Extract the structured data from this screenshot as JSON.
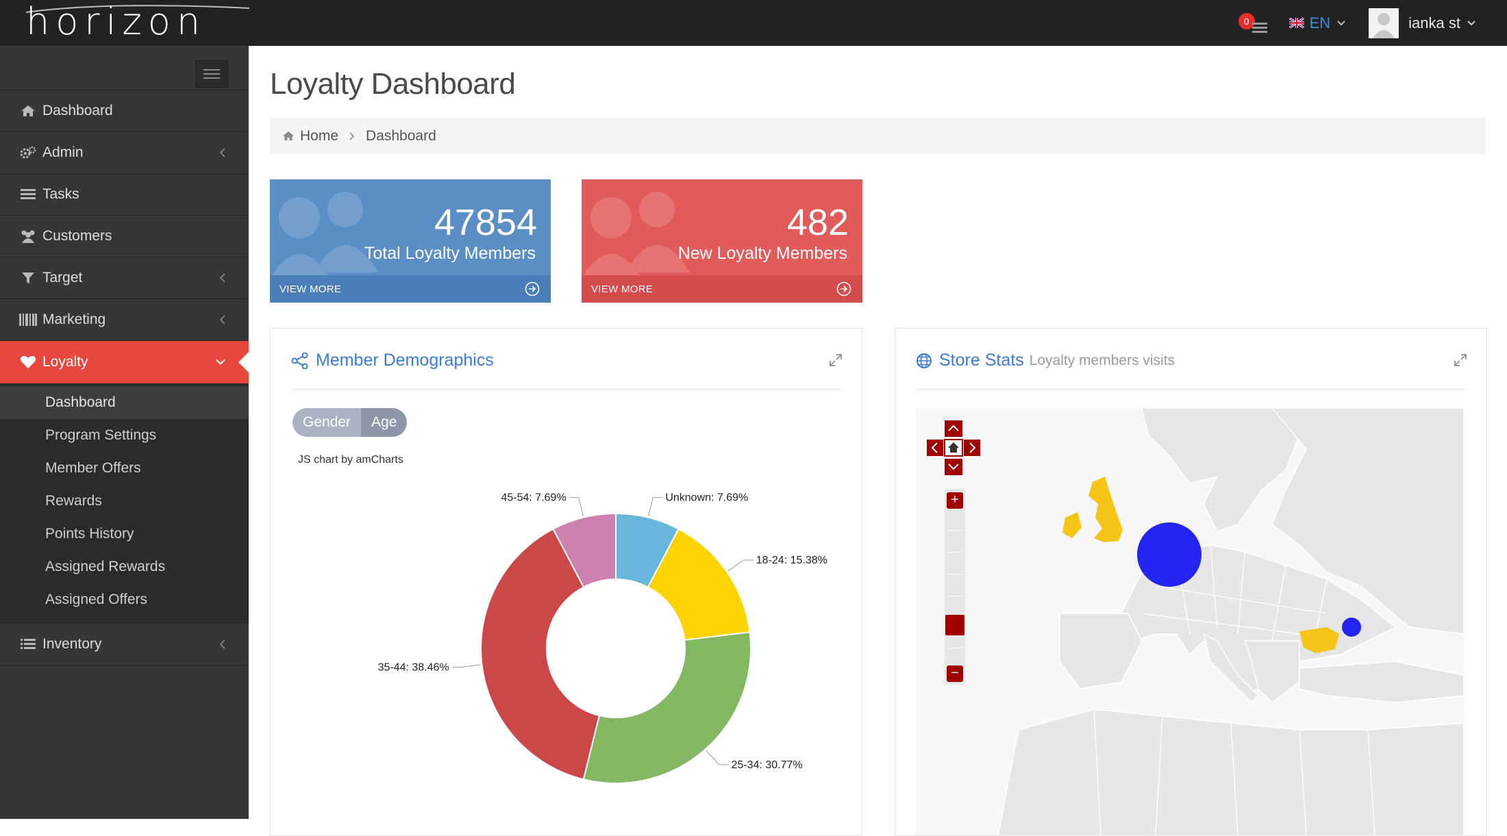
{
  "app": {
    "brand": "horizon"
  },
  "topbar": {
    "notifications_count": "0",
    "language": "EN",
    "user_name": "ianka st"
  },
  "sidebar": {
    "items": [
      {
        "label": "Dashboard",
        "icon": "home-icon",
        "has_arrow": false
      },
      {
        "label": "Admin",
        "icon": "gears-icon",
        "has_arrow": true
      },
      {
        "label": "Tasks",
        "icon": "tasks-icon",
        "has_arrow": false
      },
      {
        "label": "Customers",
        "icon": "users-icon",
        "has_arrow": false
      },
      {
        "label": "Target",
        "icon": "filter-icon",
        "has_arrow": true
      },
      {
        "label": "Marketing",
        "icon": "barcode-icon",
        "has_arrow": true
      },
      {
        "label": "Loyalty",
        "icon": "heart-icon",
        "has_arrow": true,
        "active": true
      },
      {
        "label": "Inventory",
        "icon": "list-icon",
        "has_arrow": true
      }
    ],
    "loyalty_submenu": [
      "Dashboard",
      "Program Settings",
      "Member Offers",
      "Rewards",
      "Points History",
      "Assigned Rewards",
      "Assigned Offers"
    ]
  },
  "page": {
    "title": "Loyalty Dashboard",
    "breadcrumb": {
      "home": "Home",
      "current": "Dashboard"
    }
  },
  "stats": [
    {
      "value": "47854",
      "label": "Total Loyalty Members",
      "footer": "VIEW MORE",
      "color": "#5b8ec4"
    },
    {
      "value": "482",
      "label": "New Loyalty Members",
      "footer": "VIEW MORE",
      "color": "#e25b5b"
    }
  ],
  "demographics": {
    "title": "Member Demographics",
    "toggle": {
      "gender": "Gender",
      "age": "Age",
      "selected": "Age"
    },
    "credit": "JS chart by amCharts"
  },
  "chart_data": {
    "type": "pie",
    "donut": true,
    "categories": [
      "Unknown",
      "18-24",
      "25-34",
      "35-44",
      "45-54"
    ],
    "values": [
      7.69,
      15.38,
      30.77,
      38.46,
      7.69
    ],
    "labels": [
      "Unknown: 7.69%",
      "18-24: 15.38%",
      "25-34: 30.77%",
      "35-44: 38.46%",
      "45-54: 7.69%"
    ],
    "colors": [
      "#67b7dc",
      "#fdd400",
      "#84b761",
      "#cc4748",
      "#cd82ad"
    ]
  },
  "store_stats": {
    "title": "Store Stats",
    "subtitle": "Loyalty members visits",
    "map_controls": {
      "zoom_in": "+",
      "zoom_out": "−"
    },
    "marker_colors": {
      "highlight": "#f5c518",
      "bubble": "#2424f0",
      "control": "#a00000"
    }
  }
}
